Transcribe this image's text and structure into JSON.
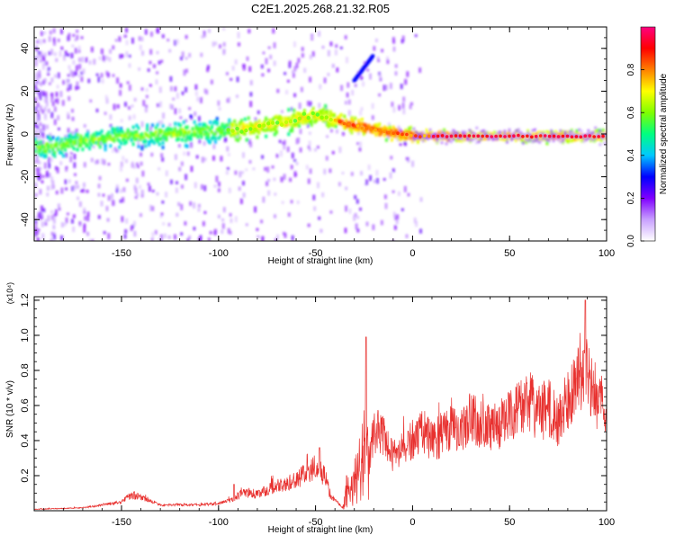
{
  "page_title": "C2E1.2025.268.21.32.R05",
  "chart_data": [
    {
      "type": "heatmap",
      "xlabel": "Height of straight line (km)",
      "ylabel": "Frequency (Hz)",
      "xlim": [
        -195,
        100
      ],
      "ylim": [
        -50,
        50
      ],
      "xticks": [
        -150,
        -100,
        -50,
        0,
        50,
        100
      ],
      "yticks": [
        -40,
        -20,
        0,
        20,
        40
      ],
      "colorbar": {
        "label": "Normalized spectral amplitude",
        "range": [
          0,
          1
        ],
        "ticks": [
          0.0,
          0.2,
          0.4,
          0.6,
          0.8
        ],
        "tick_labels": [
          "0.0",
          "0.2",
          "0.4",
          "0.6",
          "0.8"
        ],
        "colormap": [
          "#ffffff",
          "#c8a0ff",
          "#8000ff",
          "#0000ff",
          "#00c8ff",
          "#00ff80",
          "#80ff00",
          "#ffff00",
          "#ff8000",
          "#ff0000",
          "#ff0080"
        ]
      },
      "ridge": {
        "x": [
          -185,
          -170,
          -150,
          -130,
          -110,
          -95,
          -80,
          -65,
          -50,
          -42,
          -35,
          -25,
          -15,
          -5,
          0,
          10,
          25,
          50,
          75,
          100
        ],
        "y": [
          -6,
          -3,
          -1,
          0,
          1,
          2,
          3,
          6,
          9,
          7,
          5,
          3,
          1,
          0,
          -1,
          -1,
          -1,
          -1,
          -1,
          -1
        ]
      },
      "side_branch": {
        "x": [
          -30,
          -20
        ],
        "y": [
          25,
          37
        ]
      }
    },
    {
      "type": "line",
      "xlabel": "Height of straight line (km)",
      "ylabel": "SNR (10 * v/v)",
      "multiplier": "(x10⁴)",
      "xlim": [
        -195,
        100
      ],
      "ylim": [
        0,
        1.22
      ],
      "xticks": [
        -150,
        -100,
        -50,
        0,
        50,
        100
      ],
      "yticks": [
        0.2,
        0.4,
        0.6,
        0.8,
        1.0,
        1.2
      ],
      "ytick_labels": [
        "0.2",
        "0.4",
        "0.6",
        "0.8",
        "1.0",
        "1.2"
      ],
      "series_color": "#e8312f",
      "envelope": {
        "x": [
          -195,
          -170,
          -160,
          -150,
          -145,
          -130,
          -110,
          -100,
          -92,
          -88,
          -80,
          -70,
          -60,
          -55,
          -50,
          -45,
          -42,
          -36,
          -34,
          -30,
          -27,
          -25,
          -22,
          -20,
          -15,
          -10,
          -5,
          0,
          5,
          10,
          15,
          20,
          25,
          30,
          40,
          50,
          55,
          60,
          65,
          70,
          75,
          80,
          85,
          90,
          95,
          100
        ],
        "y": [
          0.01,
          0.02,
          0.04,
          0.06,
          0.12,
          0.04,
          0.04,
          0.05,
          0.08,
          0.14,
          0.12,
          0.18,
          0.22,
          0.28,
          0.32,
          0.25,
          0.1,
          0.02,
          0.18,
          0.3,
          0.44,
          0.62,
          0.4,
          0.6,
          0.55,
          0.4,
          0.45,
          0.52,
          0.6,
          0.5,
          0.55,
          0.62,
          0.58,
          0.68,
          0.6,
          0.68,
          0.75,
          0.82,
          0.7,
          0.76,
          0.65,
          0.82,
          0.95,
          1.0,
          0.82,
          0.65
        ]
      },
      "spikes": [
        {
          "x": -92,
          "y": 0.15
        },
        {
          "x": -48,
          "y": 0.36
        },
        {
          "x": -34,
          "y": 0.2
        },
        {
          "x": -24,
          "y": 0.99
        },
        {
          "x": 89,
          "y": 1.2
        }
      ]
    }
  ]
}
